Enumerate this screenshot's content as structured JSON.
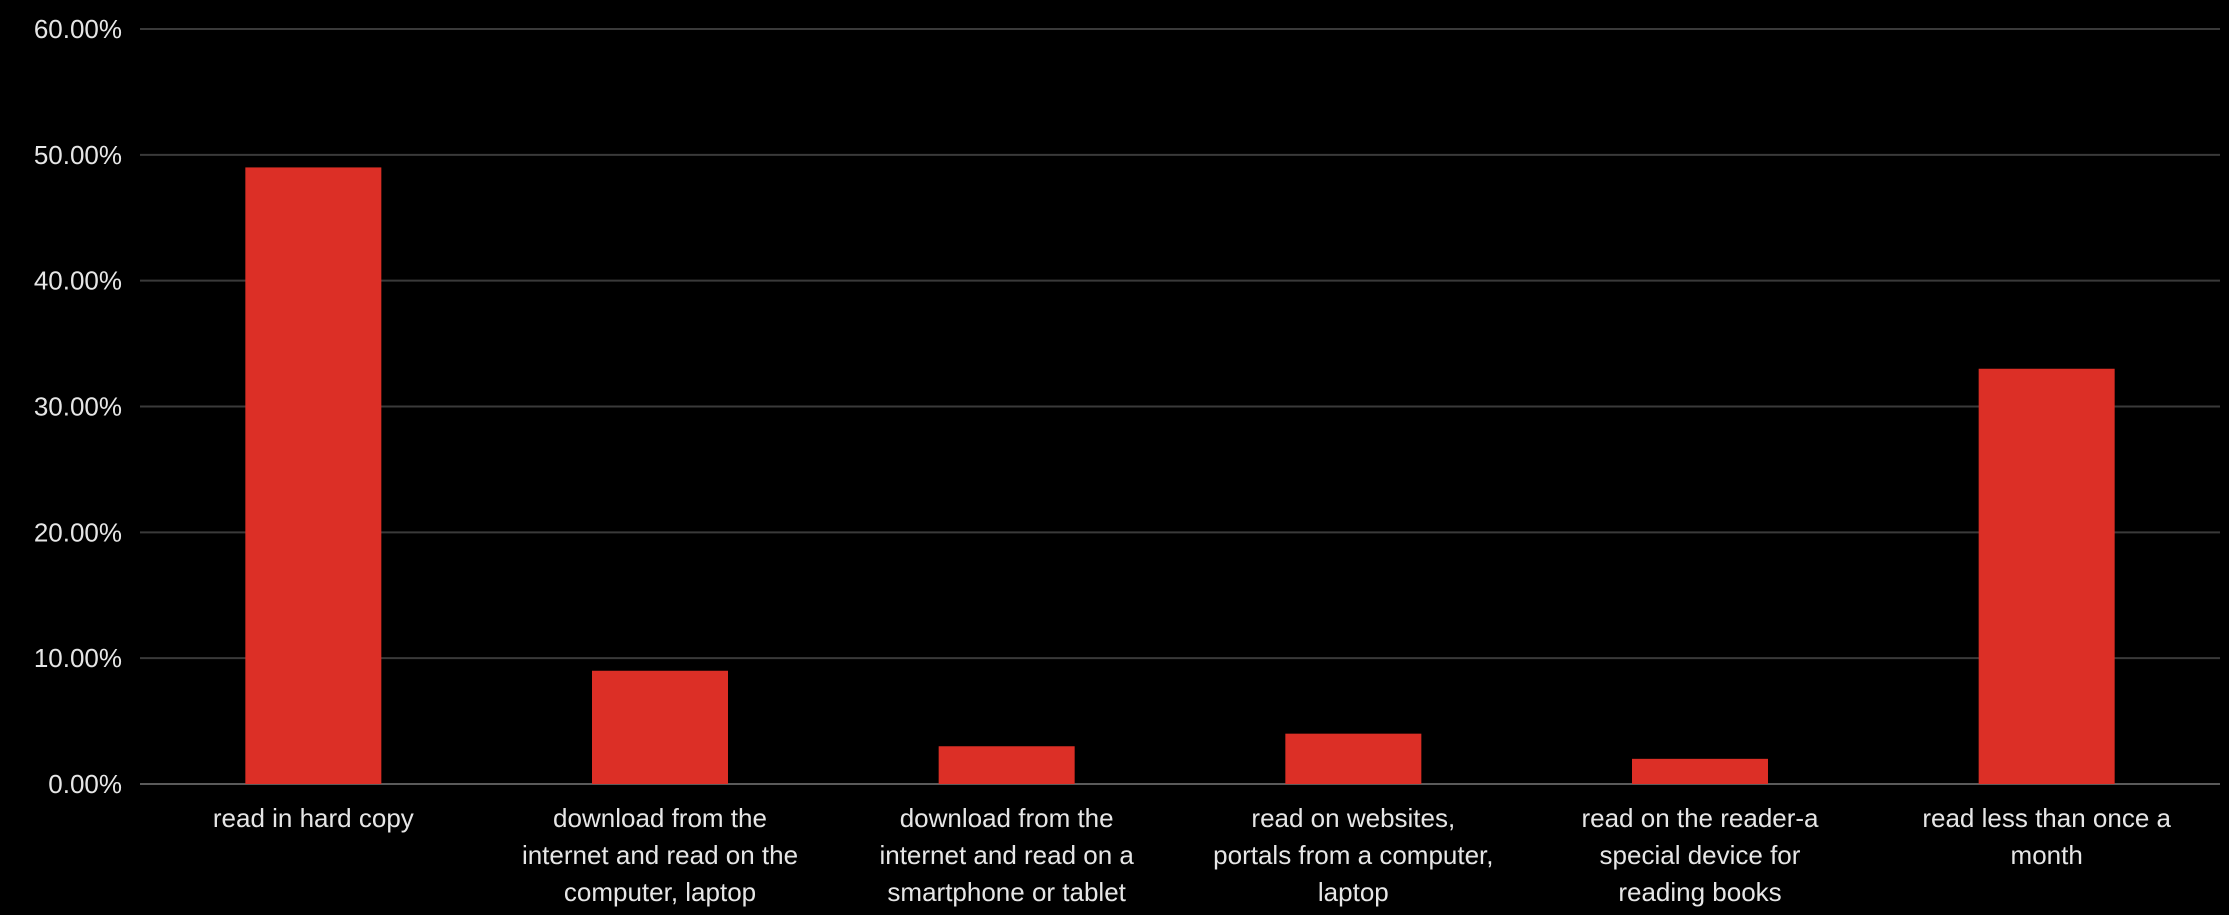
{
  "chart_data": {
    "type": "bar",
    "title": "",
    "xlabel": "",
    "ylabel": "",
    "ylim": [
      0,
      60
    ],
    "y_ticks": [
      "0.00%",
      "10.00%",
      "20.00%",
      "30.00%",
      "40.00%",
      "50.00%",
      "60.00%"
    ],
    "grid": true,
    "legend": "none",
    "bar_color": "#dc2f26",
    "background_color": "#000000",
    "categories": [
      [
        "read in hard copy"
      ],
      [
        "download from the",
        "internet and read on the",
        "computer, laptop"
      ],
      [
        "download from the",
        "internet and read on a",
        "smartphone or tablet"
      ],
      [
        "read on websites,",
        "portals from a computer,",
        "laptop"
      ],
      [
        "read on the reader-a",
        "special device for",
        "reading books"
      ],
      [
        "read less than once a",
        "month"
      ]
    ],
    "values": [
      49,
      9,
      3,
      4,
      2,
      33
    ]
  }
}
